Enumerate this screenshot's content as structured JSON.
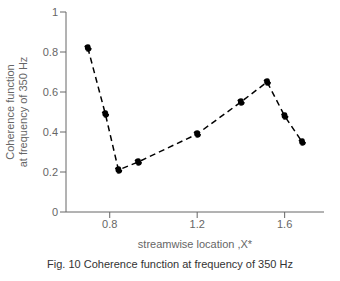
{
  "chart_data": {
    "type": "line",
    "caption": "Fig. 10 Coherence function at frequency of 350 Hz",
    "xlabel": "streamwise location ,X*",
    "ylabel": "Coherence function\nat frequency of 350 Hz",
    "x": [
      0.7,
      0.78,
      0.84,
      0.93,
      1.2,
      1.4,
      1.52,
      1.6,
      1.68
    ],
    "values": [
      0.82,
      0.49,
      0.21,
      0.25,
      0.39,
      0.55,
      0.65,
      0.48,
      0.35
    ],
    "xlim": [
      0.6,
      1.78
    ],
    "ylim": [
      0,
      1.0
    ],
    "xticks": [
      0.8,
      1.2,
      1.6
    ],
    "yticks": [
      0,
      0.2,
      0.4,
      0.6,
      0.8,
      1
    ],
    "color": "black",
    "marker": "circle",
    "line_style": "dashed"
  }
}
